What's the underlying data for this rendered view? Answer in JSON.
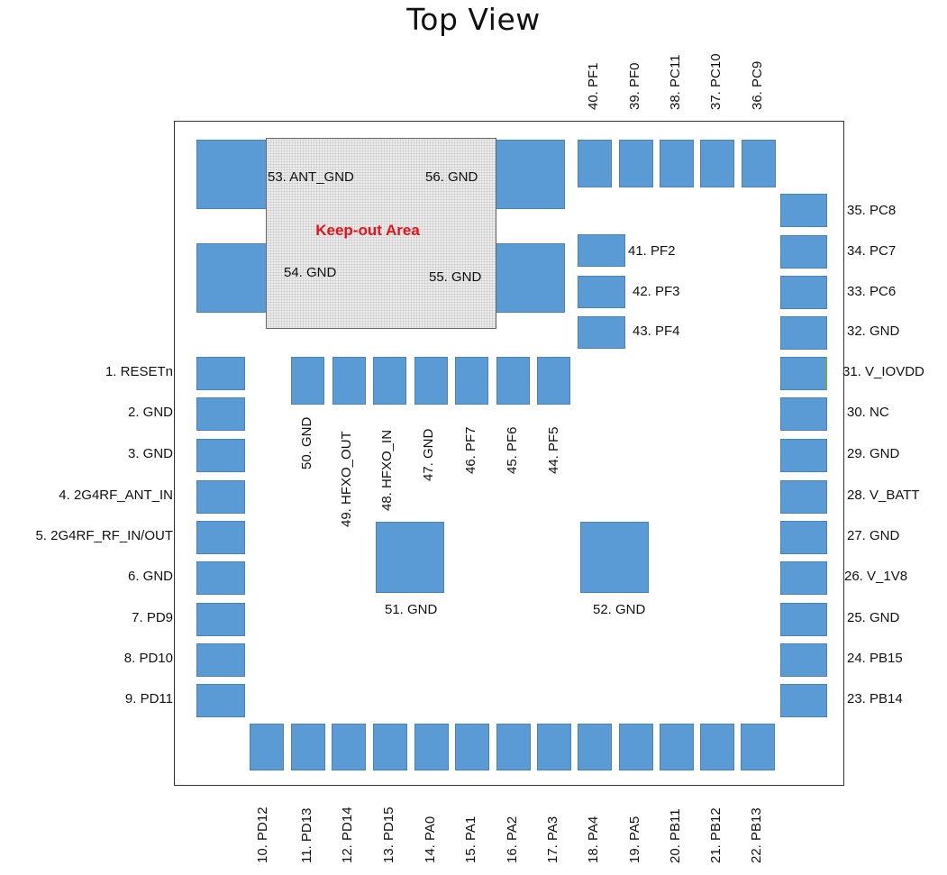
{
  "title": "Top View",
  "keepout_label": "Keep-out Area",
  "pins": {
    "p1": "1. RESETn",
    "p2": "2. GND",
    "p3": "3. GND",
    "p4": "4. 2G4RF_ANT_IN",
    "p5": "5. 2G4RF_RF_IN/OUT",
    "p6": "6. GND",
    "p7": "7. PD9",
    "p8": "8. PD10",
    "p9": "9. PD11",
    "p10": "10. PD12",
    "p11": "11. PD13",
    "p12": "12. PD14",
    "p13": "13. PD15",
    "p14": "14. PA0",
    "p15": "15. PA1",
    "p16": "16. PA2",
    "p17": "17. PA3",
    "p18": "18. PA4",
    "p19": "19. PA5",
    "p20": "20. PB11",
    "p21": "21. PB12",
    "p22": "22. PB13",
    "p23": "23. PB14",
    "p24": "24. PB15",
    "p25": "25. GND",
    "p26": "26. V_1V8",
    "p27": "27. GND",
    "p28": "28. V_BATT",
    "p29": "29. GND",
    "p30": "30. NC",
    "p31": "31. V_IOVDD",
    "p32": "32. GND",
    "p33": "33. PC6",
    "p34": "34. PC7",
    "p35": "35. PC8",
    "p36": "36. PC9",
    "p37": "37. PC10",
    "p38": "38. PC11",
    "p39": "39. PF0",
    "p40": "40. PF1",
    "p41": "41. PF2",
    "p42": "42. PF3",
    "p43": "43. PF4",
    "p44": "44. PF5",
    "p45": "45. PF6",
    "p46": "46. PF7",
    "p47": "47. GND",
    "p48": "48. HFXO_IN",
    "p49": "49. HFXO_OUT",
    "p50": "50. GND",
    "p51": "51. GND",
    "p52": "52. GND",
    "p53": "53. ANT_GND",
    "p54": "54. GND",
    "p55": "55. GND",
    "p56": "56. GND"
  },
  "colors": {
    "pad": "#5b9bd5",
    "keepout_text": "#e8131a",
    "pad_edge_accent": "#70ad47"
  }
}
